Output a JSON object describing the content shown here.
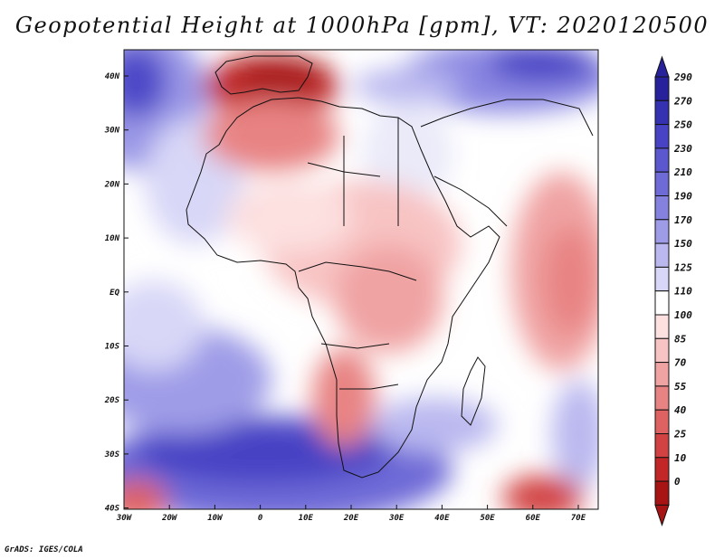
{
  "title": "Geopotential Height at 1000hPa [gpm], VT: 2020120500",
  "credit": "GrADS: IGES/COLA",
  "x_axis_labels": [
    "30W",
    "20W",
    "10W",
    "0",
    "10E",
    "20E",
    "30E",
    "40E",
    "50E",
    "60E",
    "70E"
  ],
  "y_axis_labels": [
    "40N",
    "30N",
    "20N",
    "10N",
    "EQ",
    "10S",
    "20S",
    "30S",
    "40S"
  ],
  "colorbar_labels": [
    "290",
    "270",
    "250",
    "230",
    "210",
    "190",
    "170",
    "150",
    "125",
    "110",
    "100",
    "85",
    "70",
    "55",
    "40",
    "25",
    "10",
    "0"
  ],
  "colorbar_colors": [
    "#27229b",
    "#3532b2",
    "#4743c4",
    "#5a57cf",
    "#6e6bd7",
    "#8582df",
    "#9f9ce7",
    "#bab8ef",
    "#d8d7f7",
    "#ffffff",
    "#fde0e0",
    "#f8c3c3",
    "#f0a3a3",
    "#e88383",
    "#de6262",
    "#d24242",
    "#c22626",
    "#a81414"
  ]
}
